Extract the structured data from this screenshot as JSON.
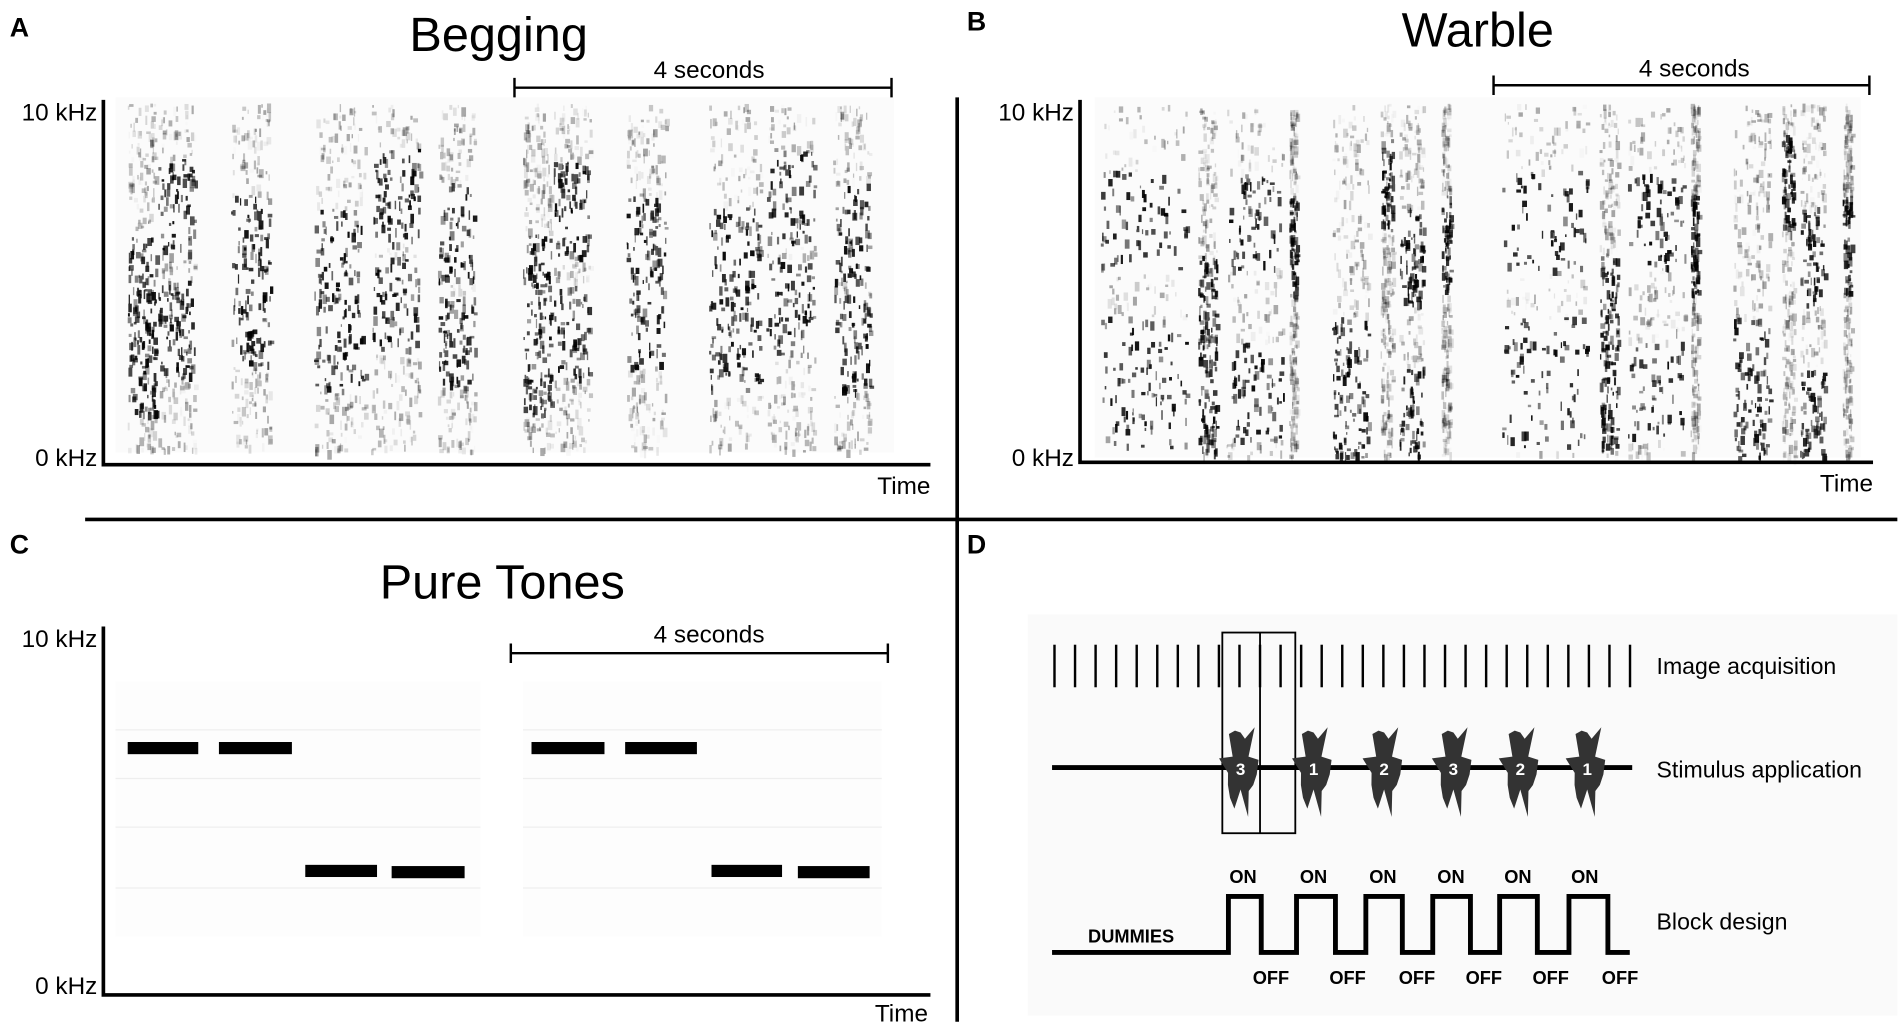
{
  "panels": [
    {
      "letter": "A",
      "title": "Begging",
      "scale_bar": "4 seconds",
      "y_top": "10 kHz",
      "y_bottom": "0 kHz",
      "x_label": "Time"
    },
    {
      "letter": "B",
      "title": "Warble",
      "scale_bar": "4 seconds",
      "y_top": "10 kHz",
      "y_bottom": "0 kHz",
      "x_label": "Time"
    },
    {
      "letter": "C",
      "title": "Pure Tones",
      "scale_bar": "4 seconds",
      "y_top": "10 kHz",
      "y_bottom": "0 kHz",
      "x_label": "Time"
    },
    {
      "letter": "D",
      "rows": [
        "Image acquisition",
        "Stimulus application",
        "Block design"
      ],
      "stimuli": [
        "3",
        "1",
        "2",
        "3",
        "2",
        "1"
      ],
      "on_labels": [
        "ON",
        "ON",
        "ON",
        "ON",
        "ON",
        "ON"
      ],
      "off_labels": [
        "OFF",
        "OFF",
        "OFF",
        "OFF",
        "OFF",
        "OFF"
      ],
      "dummies": "DUMMIES"
    }
  ]
}
